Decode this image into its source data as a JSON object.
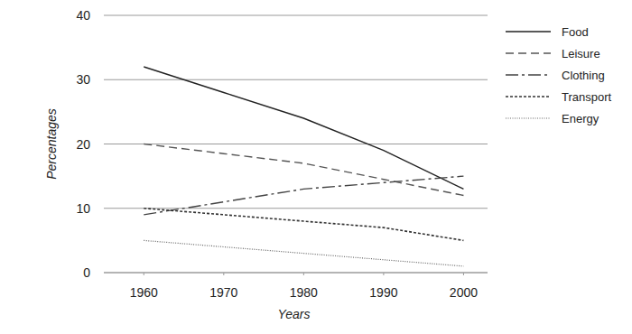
{
  "chart_data": {
    "type": "line",
    "x_label": "Years",
    "y_label": "Percentages",
    "x": [
      1960,
      1970,
      1980,
      1990,
      2000
    ],
    "series": [
      {
        "name": "Food",
        "color": "#222222",
        "line_style": "solid",
        "values": [
          32,
          28,
          24,
          19,
          13
        ]
      },
      {
        "name": "Leisure",
        "color": "#555555",
        "line_style": "dashed",
        "values": [
          20,
          18.5,
          17,
          14.5,
          12
        ]
      },
      {
        "name": "Clothing",
        "color": "#444444",
        "line_style": "long-dash",
        "values": [
          9,
          11,
          13,
          14,
          15
        ]
      },
      {
        "name": "Transport",
        "color": "#333333",
        "line_style": "short-dash",
        "values": [
          10,
          9,
          8,
          7,
          5
        ]
      },
      {
        "name": "Energy",
        "color": "#666666",
        "line_style": "dotted",
        "values": [
          5,
          4,
          3,
          2,
          1
        ]
      }
    ],
    "xlim": [
      1955,
      2003
    ],
    "xticks": [
      1960,
      1970,
      1980,
      1990,
      2000
    ],
    "ylim": [
      0,
      40
    ],
    "yticks": [
      0,
      10,
      20,
      30,
      40
    ],
    "grid": true,
    "legend": "right"
  }
}
